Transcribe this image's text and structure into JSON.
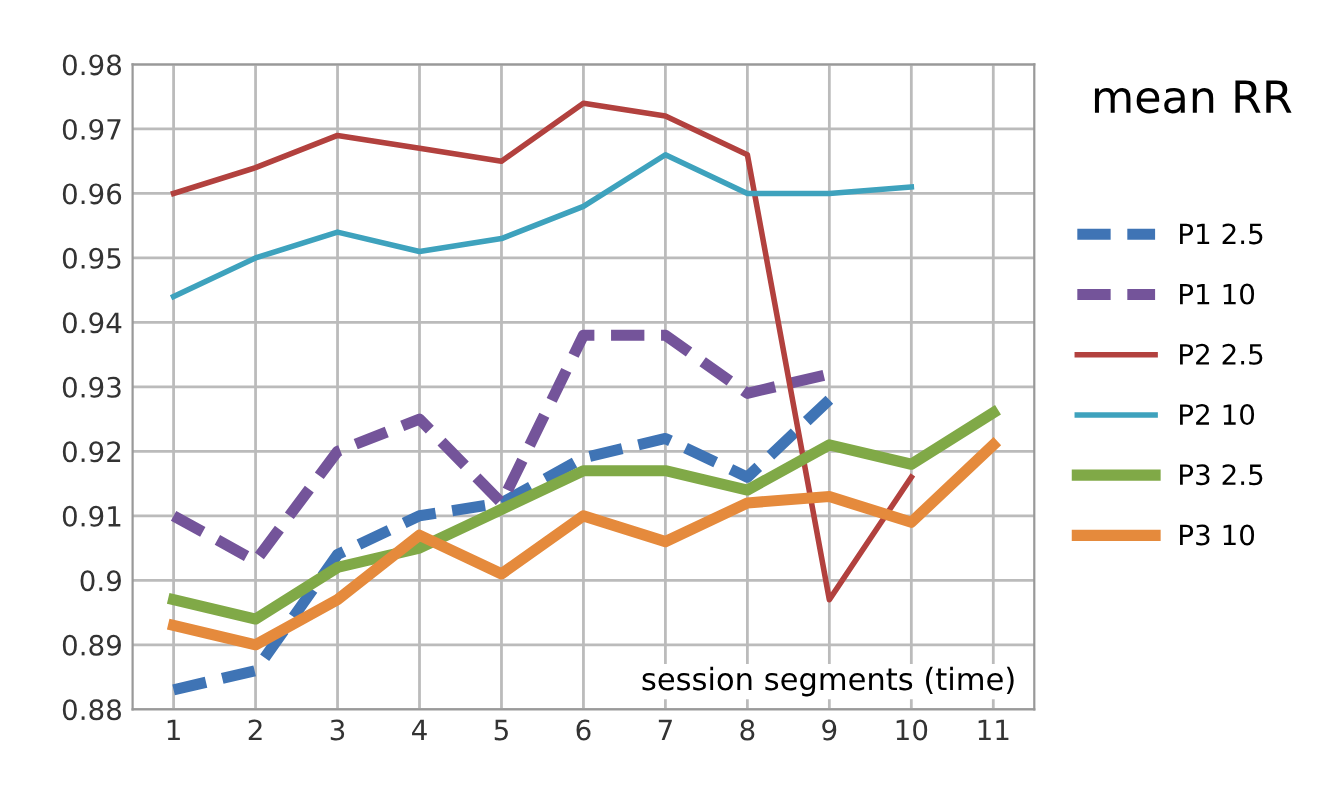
{
  "chart_data": {
    "type": "line",
    "title": "mean RR",
    "xlabel": "session segments (time)",
    "categories": [
      "1",
      "2",
      "3",
      "4",
      "5",
      "6",
      "7",
      "8",
      "9",
      "10",
      "11"
    ],
    "ylim": [
      0.88,
      0.98
    ],
    "yticks": [
      0.88,
      0.89,
      0.9,
      0.91,
      0.92,
      0.93,
      0.94,
      0.95,
      0.96,
      0.97,
      0.98
    ],
    "grid": true,
    "legend": "right",
    "marker": "none",
    "series": [
      {
        "name": "P1 2.5",
        "color": "#3f74b5",
        "line_style": "dashed",
        "values": [
          0.883,
          0.886,
          0.904,
          0.91,
          0.912,
          0.919,
          0.922,
          0.916,
          0.928,
          null,
          null
        ]
      },
      {
        "name": "P1 10",
        "color": "#74549a",
        "line_style": "dashed",
        "values": [
          0.91,
          0.903,
          0.92,
          0.925,
          0.912,
          0.938,
          0.938,
          0.929,
          0.932,
          null,
          null
        ]
      },
      {
        "name": "P2 2.5",
        "color": "#b2413e",
        "line_style": "solid",
        "values": [
          0.96,
          0.964,
          0.969,
          0.967,
          0.965,
          0.974,
          0.972,
          0.966,
          0.897,
          0.916,
          null
        ]
      },
      {
        "name": "P2 10",
        "color": "#3ea2bd",
        "line_style": "solid",
        "values": [
          0.944,
          0.95,
          0.954,
          0.951,
          0.953,
          0.958,
          0.966,
          0.96,
          0.96,
          0.961,
          null
        ]
      },
      {
        "name": "P3 2.5",
        "color": "#80a947",
        "line_style": "solid",
        "values": [
          0.897,
          0.894,
          0.902,
          0.905,
          0.911,
          0.917,
          0.917,
          0.914,
          0.921,
          0.918,
          0.926
        ]
      },
      {
        "name": "P3 10",
        "color": "#e58a3c",
        "line_style": "solid",
        "values": [
          0.893,
          0.89,
          0.897,
          0.907,
          0.901,
          0.91,
          0.906,
          0.912,
          0.913,
          0.909,
          0.921
        ]
      }
    ]
  }
}
